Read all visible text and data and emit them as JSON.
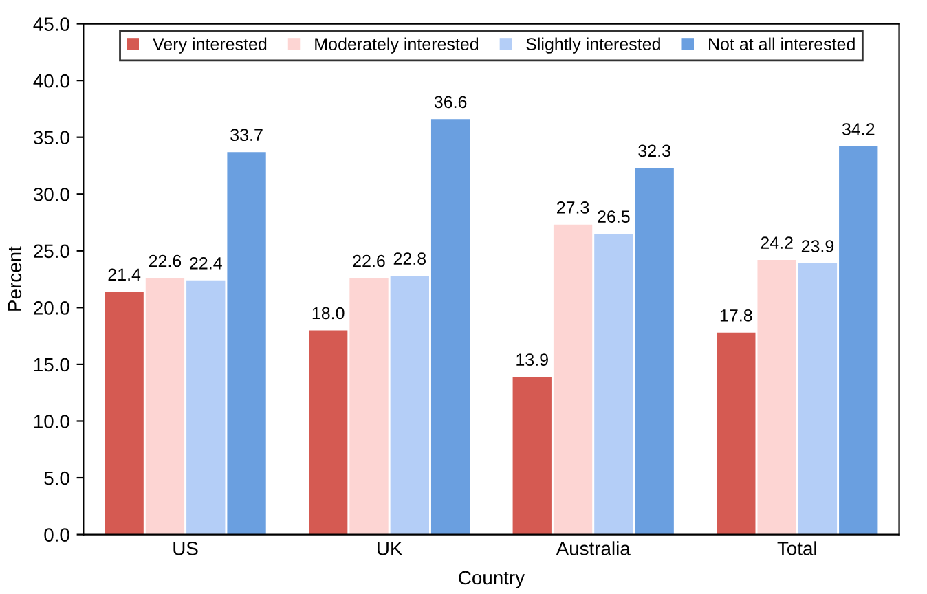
{
  "chart_data": {
    "type": "bar",
    "xlabel": "Country",
    "ylabel": "Percent",
    "categories": [
      "US",
      "UK",
      "Australia",
      "Total"
    ],
    "series": [
      {
        "name": "Very interested",
        "color": "#d55a52",
        "values": [
          21.4,
          18.0,
          13.9,
          17.8
        ],
        "value_labels": [
          "21.4",
          "18.0",
          "13.9",
          "17.8"
        ]
      },
      {
        "name": "Moderately interested",
        "color": "#fdd5d3",
        "values": [
          22.6,
          22.6,
          27.3,
          24.2
        ],
        "value_labels": [
          "22.6",
          "22.6",
          "27.3",
          "24.2"
        ]
      },
      {
        "name": "Slightly interested",
        "color": "#b4cef7",
        "values": [
          22.4,
          22.8,
          26.5,
          23.9
        ],
        "value_labels": [
          "22.4",
          "22.8",
          "26.5",
          "23.9"
        ]
      },
      {
        "name": "Not at all interested",
        "color": "#6a9fe0",
        "values": [
          33.7,
          36.6,
          32.3,
          34.2
        ],
        "value_labels": [
          "33.7",
          "36.6",
          "32.3",
          "34.2"
        ]
      }
    ],
    "ylim": [
      0,
      45
    ],
    "yticks": [
      {
        "value": 0,
        "label": "0.0"
      },
      {
        "value": 5,
        "label": "5.0"
      },
      {
        "value": 10,
        "label": "10.0"
      },
      {
        "value": 15,
        "label": "15.0"
      },
      {
        "value": 20,
        "label": "20.0"
      },
      {
        "value": 25,
        "label": "25.0"
      },
      {
        "value": 30,
        "label": "30.0"
      },
      {
        "value": 35,
        "label": "35.0"
      },
      {
        "value": 40,
        "label": "40.0"
      },
      {
        "value": 45,
        "label": "45.0"
      }
    ],
    "legend": "top",
    "grid": false
  }
}
